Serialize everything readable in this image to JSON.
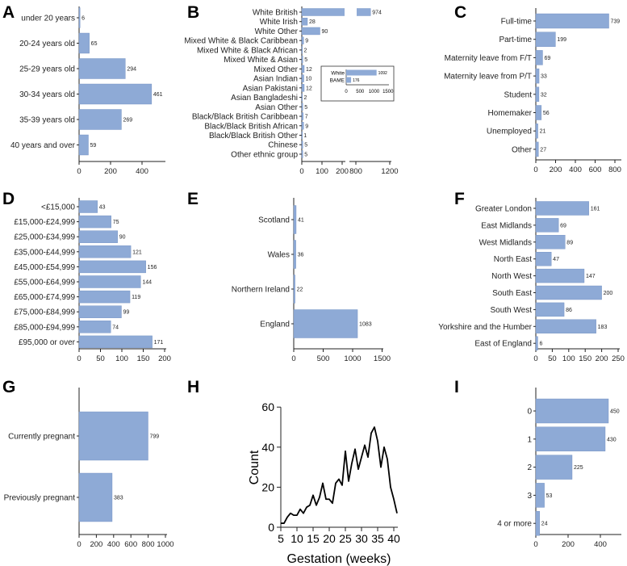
{
  "chart_data": [
    {
      "id": "A",
      "type": "bar",
      "orientation": "horizontal",
      "categories": [
        "under 20 years",
        "20-24 years old",
        "25-29 years old",
        "30-34 years old",
        "35-39 years old",
        "40 years and over"
      ],
      "values": [
        6,
        65,
        294,
        461,
        269,
        59
      ],
      "ticks": [
        0,
        200,
        400
      ]
    },
    {
      "id": "B",
      "type": "bar",
      "orientation": "horizontal",
      "axis_break": [
        200,
        800
      ],
      "categories": [
        "White British",
        "White Irish",
        "White Other",
        "Mixed White & Black Caribbean",
        "Mixed White & Black African",
        "Mixed White & Asian",
        "Mixed Other",
        "Asian Indian",
        "Asian Pakistani",
        "Asian Bangladeshi",
        "Asian Other",
        "Black/Black British Caribbean",
        "Black/Black British African",
        "Black/Black British Other",
        "Chinese",
        "Other ethnic group"
      ],
      "values": [
        974,
        28,
        90,
        9,
        2,
        5,
        12,
        10,
        12,
        2,
        5,
        7,
        9,
        1,
        5,
        5
      ],
      "ticks": [
        0,
        100,
        200,
        800,
        1200
      ],
      "inset": {
        "categories": [
          "White",
          "BAME"
        ],
        "values": [
          1092,
          176
        ],
        "ticks": [
          0,
          500,
          1000,
          1500
        ]
      }
    },
    {
      "id": "C",
      "type": "bar",
      "orientation": "horizontal",
      "categories": [
        "Full-time",
        "Part-time",
        "Maternity leave from F/T",
        "Maternity leave from P/T",
        "Student",
        "Homemaker",
        "Unemployed",
        "Other"
      ],
      "values": [
        739,
        199,
        69,
        33,
        32,
        56,
        21,
        27
      ],
      "ticks": [
        0,
        200,
        400,
        600,
        800
      ]
    },
    {
      "id": "D",
      "type": "bar",
      "orientation": "horizontal",
      "categories": [
        "<£15,000",
        "£15,000-£24,999",
        "£25,000-£34,999",
        "£35,000-£44,999",
        "£45,000-£54,999",
        "£55,000-£64,999",
        "£65,000-£74,999",
        "£75,000-£84,999",
        "£85,000-£94,999",
        "£95,000 or over"
      ],
      "values": [
        43,
        75,
        90,
        121,
        156,
        144,
        119,
        99,
        74,
        171
      ],
      "ticks": [
        0,
        50,
        100,
        150,
        200
      ]
    },
    {
      "id": "E",
      "type": "bar",
      "orientation": "horizontal",
      "categories": [
        "Scotland",
        "Wales",
        "Northern Ireland",
        "England"
      ],
      "values": [
        41,
        36,
        22,
        1083
      ],
      "ticks": [
        0,
        500,
        1000,
        1500
      ]
    },
    {
      "id": "F",
      "type": "bar",
      "orientation": "horizontal",
      "categories": [
        "Greater London",
        "East Midlands",
        "West Midlands",
        "North East",
        "North West",
        "South East",
        "South West",
        "Yorkshire and the Humber",
        "East of England"
      ],
      "values": [
        161,
        69,
        89,
        47,
        147,
        200,
        86,
        183,
        6
      ],
      "ticks": [
        0,
        50,
        100,
        150,
        200,
        250
      ]
    },
    {
      "id": "G",
      "type": "bar",
      "orientation": "horizontal",
      "categories": [
        "Currently pregnant",
        "Previously pregnant"
      ],
      "values": [
        799,
        383
      ],
      "ticks": [
        0,
        200,
        400,
        600,
        800,
        1000
      ]
    },
    {
      "id": "H",
      "type": "line",
      "xlabel": "Gestation (weeks)",
      "ylabel": "Count",
      "xlim": [
        5,
        41
      ],
      "ylim": [
        0,
        60
      ],
      "xticks": [
        5,
        10,
        15,
        20,
        25,
        30,
        35,
        40
      ],
      "yticks": [
        0,
        20,
        40,
        60
      ],
      "x": [
        5,
        6,
        7,
        8,
        9,
        10,
        11,
        12,
        13,
        14,
        15,
        16,
        17,
        18,
        19,
        20,
        21,
        22,
        23,
        24,
        25,
        26,
        27,
        28,
        29,
        30,
        31,
        32,
        33,
        34,
        35,
        36,
        37,
        38,
        39,
        40,
        41
      ],
      "y": [
        2,
        2,
        5,
        7,
        6,
        6,
        9,
        7,
        10,
        11,
        16,
        11,
        15,
        22,
        14,
        14,
        12,
        22,
        24,
        21,
        38,
        23,
        32,
        39,
        29,
        35,
        41,
        35,
        47,
        50,
        43,
        30,
        40,
        34,
        20,
        14,
        7
      ]
    },
    {
      "id": "I",
      "type": "bar",
      "orientation": "horizontal",
      "categories": [
        "0",
        "1",
        "2",
        "3",
        "4 or more"
      ],
      "values": [
        450,
        430,
        225,
        53,
        24
      ],
      "ticks": [
        0,
        200,
        400
      ]
    }
  ],
  "colors": {
    "bar": "#8eaad6",
    "bar_edge": "#6e8dc0",
    "axis": "#222222"
  }
}
